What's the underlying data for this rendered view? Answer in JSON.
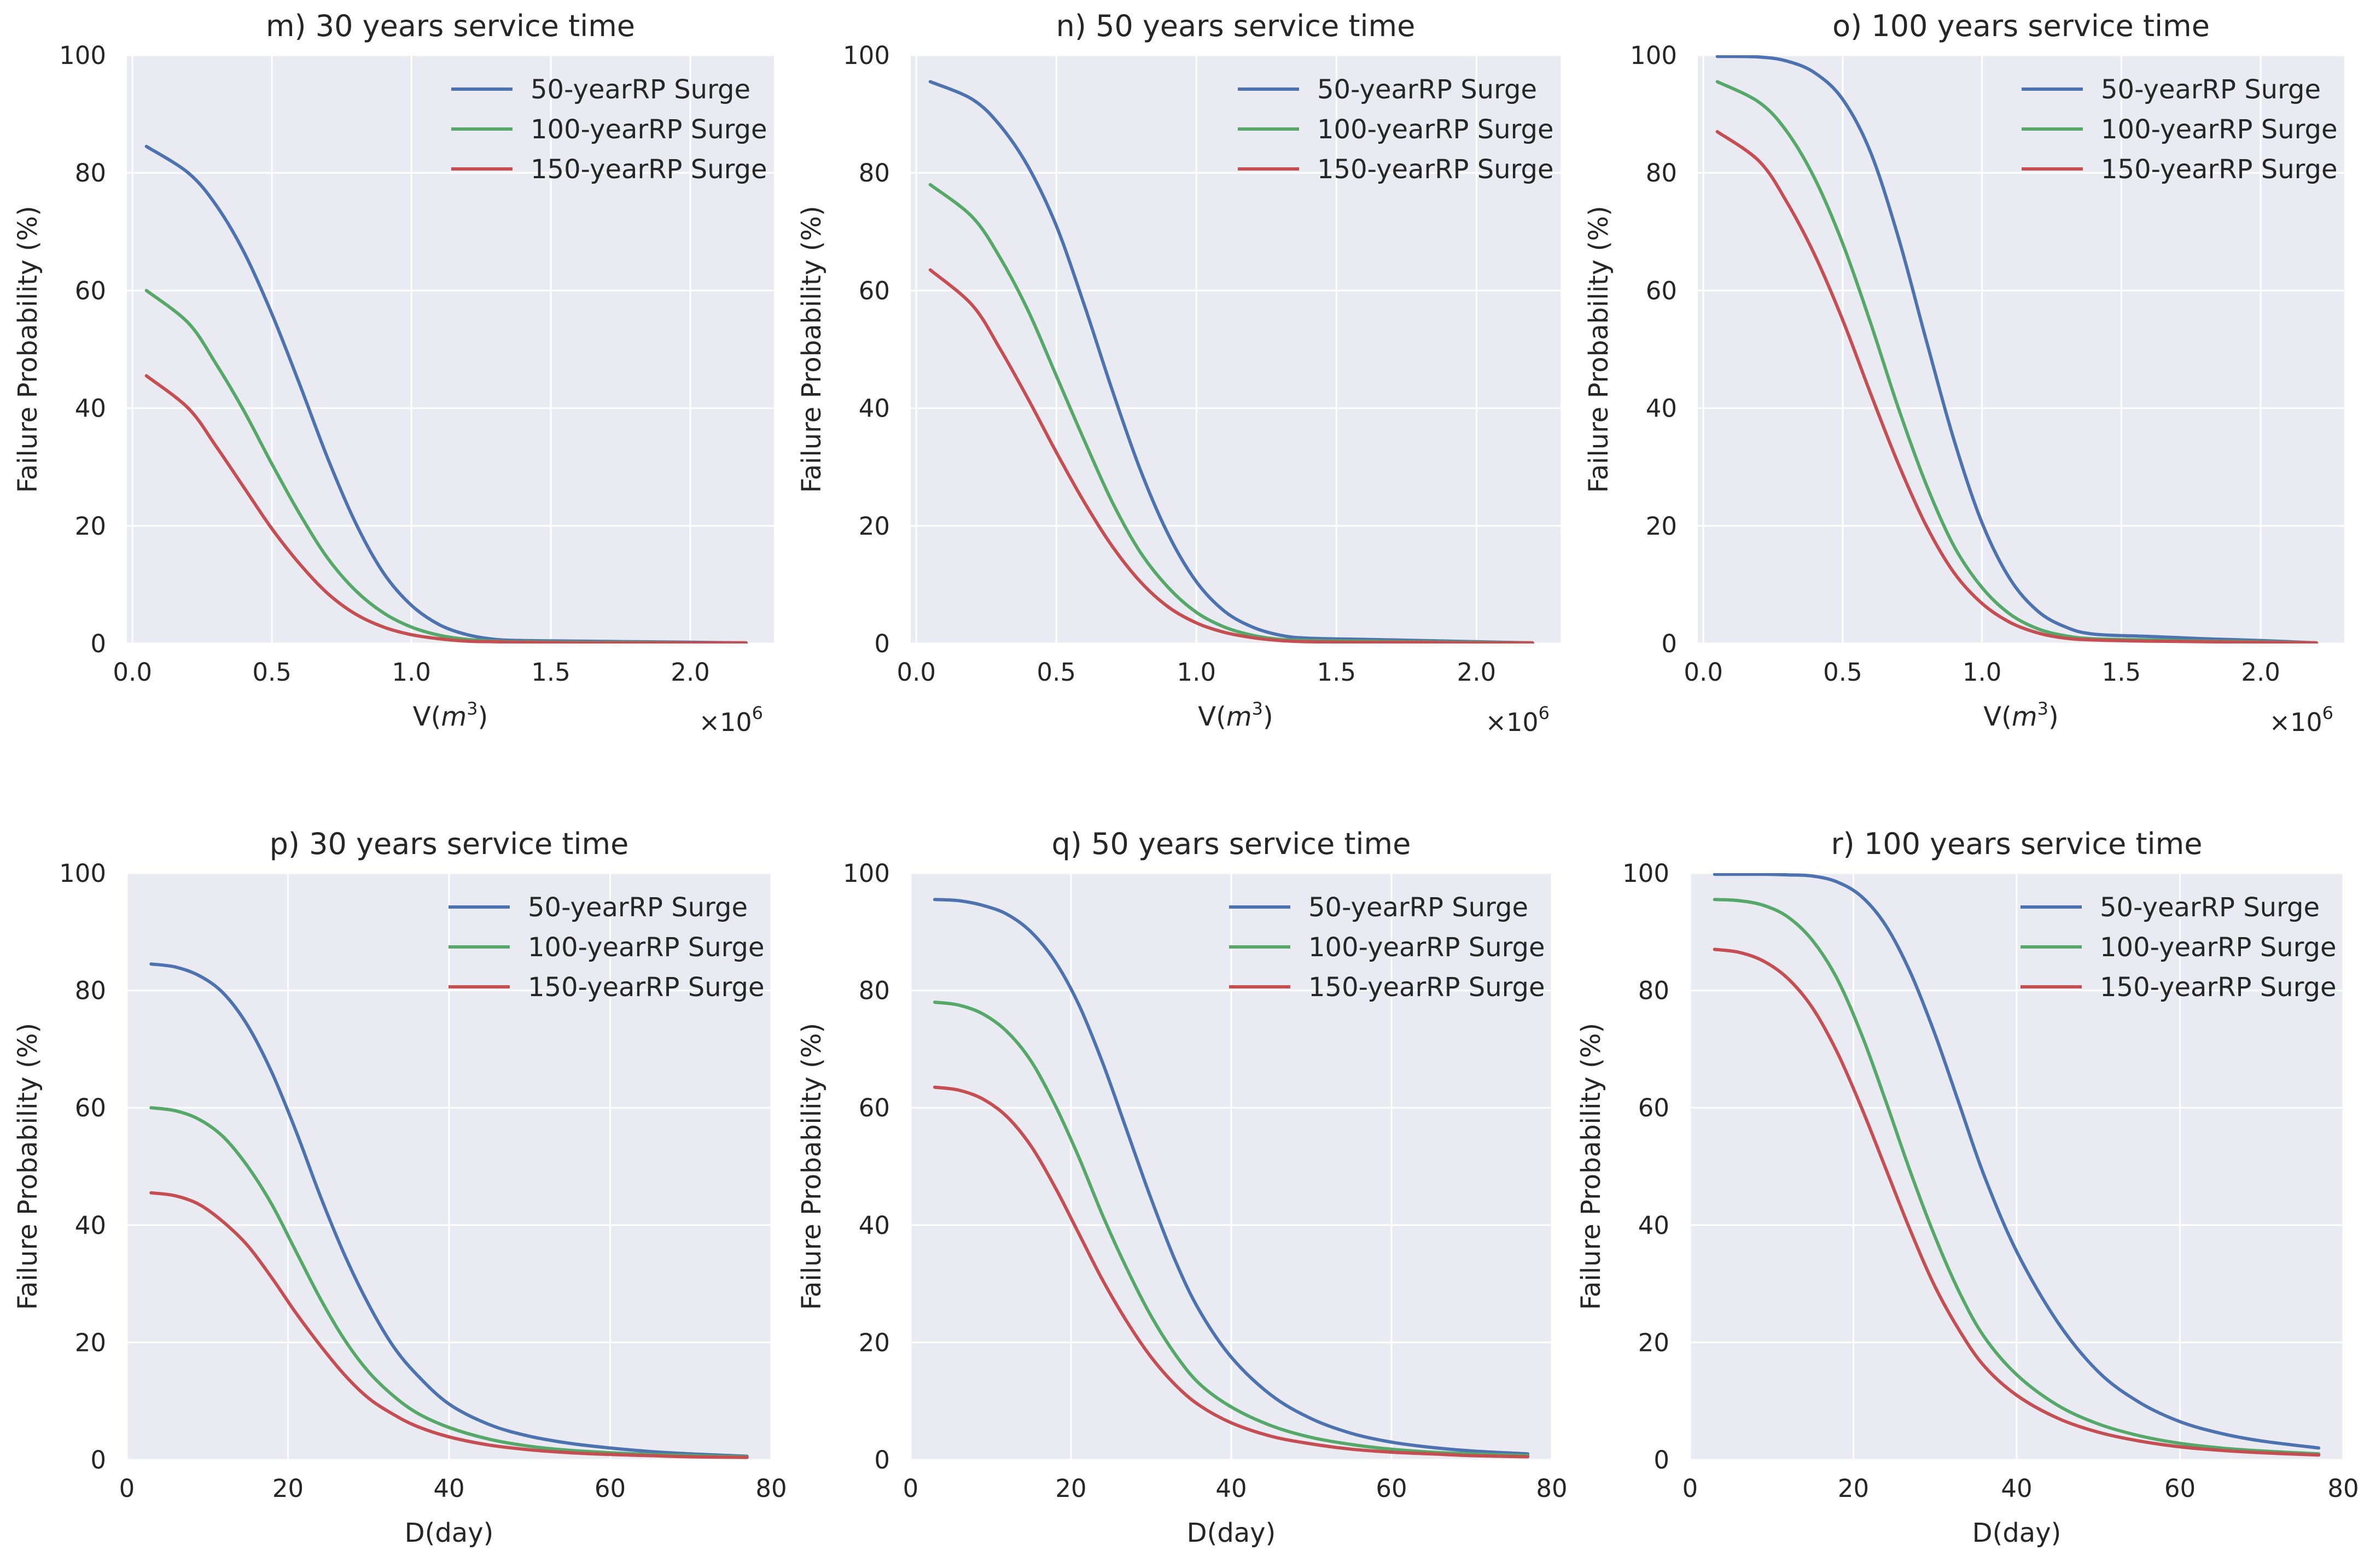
{
  "chart_data": [
    {
      "type": "line",
      "title": "m) 30 years service time",
      "xlabel_prefix": "V(",
      "xlabel_var": "m",
      "xlabel_exp": "3",
      "xlabel_suffix": ")",
      "ylabel": "Failure Probability (%)",
      "x_scale_text": "×10",
      "x_scale_exp": "6",
      "xlim": [
        -0.02,
        2.3
      ],
      "ylim": [
        0,
        100
      ],
      "x_ticks": [
        0.0,
        0.5,
        1.0,
        1.5,
        2.0
      ],
      "x_tick_labels": [
        "0.0",
        "0.5",
        "1.0",
        "1.5",
        "2.0"
      ],
      "y_ticks": [
        0,
        20,
        40,
        60,
        80,
        100
      ],
      "y_tick_labels": [
        "0",
        "20",
        "40",
        "60",
        "80",
        "100"
      ],
      "grid": true,
      "legend_position": "upper-right",
      "series": [
        {
          "name": "50-yearRP Surge",
          "color": "#4C72B0",
          "x": [
            0.05,
            0.2,
            0.3,
            0.4,
            0.5,
            0.6,
            0.7,
            0.8,
            0.9,
            1.0,
            1.1,
            1.2,
            1.3,
            1.4,
            1.6,
            1.8,
            2.0,
            2.2
          ],
          "y": [
            84.5,
            80.0,
            74.5,
            66.5,
            56.0,
            44.0,
            31.5,
            20.5,
            12.0,
            6.5,
            3.2,
            1.5,
            0.7,
            0.5,
            0.4,
            0.3,
            0.2,
            0.1
          ]
        },
        {
          "name": "100-yearRP Surge",
          "color": "#55A868",
          "x": [
            0.05,
            0.2,
            0.3,
            0.4,
            0.5,
            0.6,
            0.7,
            0.8,
            0.9,
            1.0,
            1.1,
            1.2,
            1.3,
            1.4,
            1.6,
            1.8,
            2.0,
            2.2
          ],
          "y": [
            60.0,
            54.5,
            47.5,
            39.5,
            30.5,
            22.0,
            14.5,
            9.0,
            5.2,
            2.8,
            1.4,
            0.7,
            0.4,
            0.3,
            0.2,
            0.2,
            0.1,
            0.1
          ]
        },
        {
          "name": "150-yearRP Surge",
          "color": "#C44E52",
          "x": [
            0.05,
            0.2,
            0.3,
            0.4,
            0.5,
            0.6,
            0.7,
            0.8,
            0.9,
            1.0,
            1.1,
            1.2,
            1.3,
            1.4,
            1.6,
            1.8,
            2.0,
            2.2
          ],
          "y": [
            45.5,
            40.0,
            33.5,
            26.5,
            19.5,
            13.5,
            8.5,
            5.0,
            2.8,
            1.5,
            0.8,
            0.4,
            0.3,
            0.2,
            0.1,
            0.1,
            0.1,
            0.1
          ]
        }
      ]
    },
    {
      "type": "line",
      "title": "n) 50 years service time",
      "xlabel_prefix": "V(",
      "xlabel_var": "m",
      "xlabel_exp": "3",
      "xlabel_suffix": ")",
      "ylabel": "Failure Probability (%)",
      "x_scale_text": "×10",
      "x_scale_exp": "6",
      "xlim": [
        -0.02,
        2.3
      ],
      "ylim": [
        0,
        100
      ],
      "x_ticks": [
        0.0,
        0.5,
        1.0,
        1.5,
        2.0
      ],
      "x_tick_labels": [
        "0.0",
        "0.5",
        "1.0",
        "1.5",
        "2.0"
      ],
      "y_ticks": [
        0,
        20,
        40,
        60,
        80,
        100
      ],
      "y_tick_labels": [
        "0",
        "20",
        "40",
        "60",
        "80",
        "100"
      ],
      "grid": true,
      "legend_position": "upper-right",
      "series": [
        {
          "name": "50-yearRP Surge",
          "color": "#4C72B0",
          "x": [
            0.05,
            0.2,
            0.3,
            0.4,
            0.5,
            0.6,
            0.7,
            0.8,
            0.9,
            1.0,
            1.1,
            1.2,
            1.3,
            1.4,
            1.6,
            1.8,
            2.0,
            2.2
          ],
          "y": [
            95.5,
            92.5,
            88.0,
            81.0,
            71.0,
            57.5,
            43.0,
            29.5,
            18.5,
            10.5,
            5.5,
            2.8,
            1.4,
            0.9,
            0.7,
            0.5,
            0.3,
            0.1
          ]
        },
        {
          "name": "100-yearRP Surge",
          "color": "#55A868",
          "x": [
            0.05,
            0.2,
            0.3,
            0.4,
            0.5,
            0.6,
            0.7,
            0.8,
            0.9,
            1.0,
            1.1,
            1.2,
            1.3,
            1.4,
            1.6,
            1.8,
            2.0,
            2.2
          ],
          "y": [
            78.0,
            72.5,
            65.5,
            56.5,
            45.5,
            34.5,
            24.0,
            15.5,
            9.5,
            5.3,
            2.8,
            1.4,
            0.7,
            0.5,
            0.4,
            0.3,
            0.2,
            0.1
          ]
        },
        {
          "name": "150-yearRP Surge",
          "color": "#C44E52",
          "x": [
            0.05,
            0.2,
            0.3,
            0.4,
            0.5,
            0.6,
            0.7,
            0.8,
            0.9,
            1.0,
            1.1,
            1.2,
            1.3,
            1.4,
            1.6,
            1.8,
            2.0,
            2.2
          ],
          "y": [
            63.5,
            57.5,
            50.0,
            41.5,
            32.5,
            24.0,
            16.5,
            10.5,
            6.2,
            3.5,
            1.9,
            1.0,
            0.5,
            0.3,
            0.2,
            0.2,
            0.1,
            0.1
          ]
        }
      ]
    },
    {
      "type": "line",
      "title": "o) 100 years service time",
      "xlabel_prefix": "V(",
      "xlabel_var": "m",
      "xlabel_exp": "3",
      "xlabel_suffix": ")",
      "ylabel": "Failure Probability (%)",
      "x_scale_text": "×10",
      "x_scale_exp": "6",
      "xlim": [
        -0.02,
        2.3
      ],
      "ylim": [
        0,
        100
      ],
      "x_ticks": [
        0.0,
        0.5,
        1.0,
        1.5,
        2.0
      ],
      "x_tick_labels": [
        "0.0",
        "0.5",
        "1.0",
        "1.5",
        "2.0"
      ],
      "y_ticks": [
        0,
        20,
        40,
        60,
        80,
        100
      ],
      "y_tick_labels": [
        "0",
        "20",
        "40",
        "60",
        "80",
        "100"
      ],
      "grid": true,
      "legend_position": "upper-right",
      "series": [
        {
          "name": "50-yearRP Surge",
          "color": "#4C72B0",
          "x": [
            0.05,
            0.2,
            0.3,
            0.4,
            0.5,
            0.6,
            0.7,
            0.8,
            0.9,
            1.0,
            1.1,
            1.2,
            1.3,
            1.4,
            1.6,
            1.8,
            2.0,
            2.2
          ],
          "y": [
            99.8,
            99.7,
            99.0,
            97.0,
            92.5,
            83.5,
            69.0,
            51.5,
            34.5,
            20.5,
            11.0,
            5.5,
            2.8,
            1.6,
            1.2,
            0.8,
            0.5,
            0.1
          ]
        },
        {
          "name": "100-yearRP Surge",
          "color": "#55A868",
          "x": [
            0.05,
            0.2,
            0.3,
            0.4,
            0.5,
            0.6,
            0.7,
            0.8,
            0.9,
            1.0,
            1.1,
            1.2,
            1.3,
            1.4,
            1.6,
            1.8,
            2.0,
            2.2
          ],
          "y": [
            95.5,
            92.0,
            87.0,
            79.0,
            68.0,
            54.5,
            40.0,
            27.0,
            16.5,
            9.5,
            5.0,
            2.5,
            1.3,
            0.8,
            0.6,
            0.4,
            0.3,
            0.1
          ]
        },
        {
          "name": "150-yearRP Surge",
          "color": "#C44E52",
          "x": [
            0.05,
            0.2,
            0.3,
            0.4,
            0.5,
            0.6,
            0.7,
            0.8,
            0.9,
            1.0,
            1.1,
            1.2,
            1.3,
            1.4,
            1.6,
            1.8,
            2.0,
            2.2
          ],
          "y": [
            87.0,
            82.0,
            75.0,
            66.0,
            55.0,
            42.5,
            30.5,
            20.0,
            12.0,
            6.8,
            3.6,
            1.8,
            0.9,
            0.6,
            0.4,
            0.3,
            0.2,
            0.1
          ]
        }
      ]
    },
    {
      "type": "line",
      "title": "p) 30 years service time",
      "xlabel": "D(day)",
      "ylabel": "Failure Probability (%)",
      "xlim": [
        0,
        80
      ],
      "ylim": [
        0,
        100
      ],
      "x_ticks": [
        0,
        20,
        40,
        60,
        80
      ],
      "x_tick_labels": [
        "0",
        "20",
        "40",
        "60",
        "80"
      ],
      "y_ticks": [
        0,
        20,
        40,
        60,
        80,
        100
      ],
      "y_tick_labels": [
        "0",
        "20",
        "40",
        "60",
        "80",
        "100"
      ],
      "grid": true,
      "legend_position": "upper-right",
      "series": [
        {
          "name": "50-yearRP Surge",
          "color": "#4C72B0",
          "x": [
            3,
            6,
            9,
            12,
            15,
            18,
            21,
            24,
            27,
            30,
            33,
            36,
            40,
            45,
            50,
            55,
            60,
            65,
            70,
            77
          ],
          "y": [
            84.5,
            84.0,
            82.5,
            79.5,
            74.0,
            66.0,
            56.0,
            45.0,
            35.0,
            26.5,
            19.5,
            14.5,
            9.5,
            6.0,
            4.0,
            2.8,
            2.0,
            1.4,
            1.0,
            0.6
          ]
        },
        {
          "name": "100-yearRP Surge",
          "color": "#55A868",
          "x": [
            3,
            6,
            9,
            12,
            15,
            18,
            21,
            24,
            27,
            30,
            33,
            36,
            40,
            45,
            50,
            55,
            60,
            65,
            70,
            77
          ],
          "y": [
            60.0,
            59.5,
            58.0,
            55.0,
            50.0,
            43.5,
            35.5,
            27.5,
            20.5,
            15.0,
            11.0,
            8.0,
            5.5,
            3.5,
            2.3,
            1.6,
            1.2,
            0.9,
            0.7,
            0.5
          ]
        },
        {
          "name": "150-yearRP Surge",
          "color": "#C44E52",
          "x": [
            3,
            6,
            9,
            12,
            15,
            18,
            21,
            24,
            27,
            30,
            33,
            36,
            40,
            45,
            50,
            55,
            60,
            65,
            70,
            77
          ],
          "y": [
            45.5,
            45.0,
            43.5,
            40.5,
            36.5,
            31.0,
            25.0,
            19.5,
            14.5,
            10.5,
            7.8,
            5.7,
            3.9,
            2.5,
            1.7,
            1.2,
            0.9,
            0.7,
            0.5,
            0.4
          ]
        }
      ]
    },
    {
      "type": "line",
      "title": "q) 50 years service time",
      "xlabel": "D(day)",
      "ylabel": "Failure Probability (%)",
      "xlim": [
        0,
        80
      ],
      "ylim": [
        0,
        100
      ],
      "x_ticks": [
        0,
        20,
        40,
        60,
        80
      ],
      "x_tick_labels": [
        "0",
        "20",
        "40",
        "60",
        "80"
      ],
      "y_ticks": [
        0,
        20,
        40,
        60,
        80,
        100
      ],
      "y_tick_labels": [
        "0",
        "20",
        "40",
        "60",
        "80",
        "100"
      ],
      "grid": true,
      "legend_position": "upper-right",
      "series": [
        {
          "name": "50-yearRP Surge",
          "color": "#4C72B0",
          "x": [
            3,
            6,
            9,
            12,
            15,
            18,
            21,
            24,
            27,
            30,
            33,
            36,
            40,
            45,
            50,
            55,
            60,
            65,
            70,
            77
          ],
          "y": [
            95.5,
            95.3,
            94.5,
            93.0,
            90.0,
            85.0,
            77.5,
            67.5,
            56.0,
            44.5,
            34.0,
            25.5,
            17.5,
            11.0,
            7.0,
            4.5,
            3.0,
            2.1,
            1.5,
            1.0
          ]
        },
        {
          "name": "100-yearRP Surge",
          "color": "#55A868",
          "x": [
            3,
            6,
            9,
            12,
            15,
            18,
            21,
            24,
            27,
            30,
            33,
            36,
            40,
            45,
            50,
            55,
            60,
            65,
            70,
            77
          ],
          "y": [
            78.0,
            77.5,
            76.0,
            73.0,
            68.0,
            60.5,
            51.5,
            41.5,
            32.5,
            24.5,
            18.0,
            13.0,
            9.0,
            5.8,
            3.8,
            2.6,
            1.8,
            1.3,
            1.0,
            0.7
          ]
        },
        {
          "name": "150-yearRP Surge",
          "color": "#C44E52",
          "x": [
            3,
            6,
            9,
            12,
            15,
            18,
            21,
            24,
            27,
            30,
            33,
            36,
            40,
            45,
            50,
            55,
            60,
            65,
            70,
            77
          ],
          "y": [
            63.5,
            63.0,
            61.5,
            58.5,
            53.5,
            46.5,
            38.5,
            30.5,
            23.5,
            17.5,
            12.8,
            9.3,
            6.3,
            4.0,
            2.7,
            1.8,
            1.3,
            1.0,
            0.7,
            0.5
          ]
        }
      ]
    },
    {
      "type": "line",
      "title": "r) 100 years service time",
      "xlabel": "D(day)",
      "ylabel": "Failure Probability (%)",
      "xlim": [
        0,
        80
      ],
      "ylim": [
        0,
        100
      ],
      "x_ticks": [
        0,
        20,
        40,
        60,
        80
      ],
      "x_tick_labels": [
        "0",
        "20",
        "40",
        "60",
        "80"
      ],
      "y_ticks": [
        0,
        20,
        40,
        60,
        80,
        100
      ],
      "y_tick_labels": [
        "0",
        "20",
        "40",
        "60",
        "80",
        "100"
      ],
      "grid": true,
      "legend_position": "upper-right",
      "series": [
        {
          "name": "50-yearRP Surge",
          "color": "#4C72B0",
          "x": [
            3,
            6,
            9,
            12,
            15,
            18,
            21,
            24,
            27,
            30,
            33,
            36,
            40,
            45,
            50,
            55,
            60,
            65,
            70,
            77
          ],
          "y": [
            99.8,
            99.8,
            99.8,
            99.7,
            99.5,
            98.5,
            96.0,
            91.0,
            83.0,
            72.5,
            60.5,
            48.5,
            35.5,
            23.5,
            15.0,
            9.8,
            6.5,
            4.5,
            3.2,
            2.0
          ]
        },
        {
          "name": "100-yearRP Surge",
          "color": "#55A868",
          "x": [
            3,
            6,
            9,
            12,
            15,
            18,
            21,
            24,
            27,
            30,
            33,
            36,
            40,
            45,
            50,
            55,
            60,
            65,
            70,
            77
          ],
          "y": [
            95.5,
            95.3,
            94.5,
            92.5,
            88.5,
            82.0,
            72.5,
            61.0,
            49.0,
            38.0,
            28.5,
            21.0,
            14.5,
            9.3,
            6.1,
            4.1,
            2.8,
            2.0,
            1.5,
            1.0
          ]
        },
        {
          "name": "150-yearRP Surge",
          "color": "#C44E52",
          "x": [
            3,
            6,
            9,
            12,
            15,
            18,
            21,
            24,
            27,
            30,
            33,
            36,
            40,
            45,
            50,
            55,
            60,
            65,
            70,
            77
          ],
          "y": [
            87.0,
            86.5,
            85.0,
            82.0,
            77.0,
            69.5,
            60.0,
            49.5,
            39.0,
            29.5,
            22.0,
            16.0,
            11.0,
            7.1,
            4.7,
            3.2,
            2.2,
            1.6,
            1.2,
            0.8
          ]
        }
      ]
    }
  ]
}
